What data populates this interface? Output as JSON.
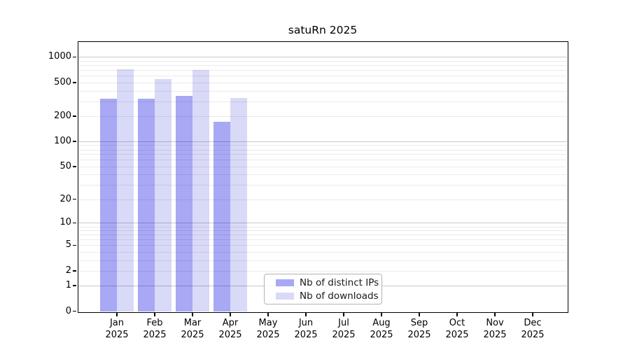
{
  "figure": {
    "title": "satuRn 2025",
    "background_color": "#ffffff"
  },
  "chart_data": {
    "type": "bar",
    "title": "satuRn 2025",
    "categories": [
      {
        "month": "Jan",
        "year": "2025"
      },
      {
        "month": "Feb",
        "year": "2025"
      },
      {
        "month": "Mar",
        "year": "2025"
      },
      {
        "month": "Apr",
        "year": "2025"
      },
      {
        "month": "May",
        "year": "2025"
      },
      {
        "month": "Jun",
        "year": "2025"
      },
      {
        "month": "Jul",
        "year": "2025"
      },
      {
        "month": "Aug",
        "year": "2025"
      },
      {
        "month": "Sep",
        "year": "2025"
      },
      {
        "month": "Oct",
        "year": "2025"
      },
      {
        "month": "Nov",
        "year": "2025"
      },
      {
        "month": "Dec",
        "year": "2025"
      }
    ],
    "series": [
      {
        "name": "Nb of distinct IPs",
        "color": "#a8a8f5",
        "values": [
          320,
          320,
          350,
          170,
          null,
          null,
          null,
          null,
          null,
          null,
          null,
          null
        ]
      },
      {
        "name": "Nb of downloads",
        "color": "#d9d9f8",
        "values": [
          710,
          550,
          700,
          330,
          null,
          null,
          null,
          null,
          null,
          null,
          null,
          null
        ]
      }
    ],
    "y_axis": {
      "scale": "log10(1+x)",
      "tick_values": [
        1000,
        500,
        200,
        100,
        50,
        20,
        10,
        5,
        2,
        1,
        0
      ],
      "tick_labels": [
        "1000",
        "500",
        "200",
        "100",
        "50",
        "20",
        "10",
        "5",
        "2",
        "1",
        "0"
      ],
      "range": [
        0,
        1500
      ]
    },
    "grid": {
      "major_values": [
        1,
        10,
        100,
        1000
      ],
      "minor_values": [
        2,
        3,
        4,
        5,
        6,
        7,
        8,
        9,
        20,
        30,
        40,
        50,
        60,
        70,
        80,
        90,
        200,
        300,
        400,
        500,
        600,
        700,
        800,
        900
      ],
      "major_color": "rgba(0,0,0,0.21)",
      "minor_color": "rgba(0,0,0,0.08)"
    },
    "legend": {
      "position": "bottom-center",
      "items": [
        "Nb of distinct IPs",
        "Nb of downloads"
      ]
    },
    "colors": {
      "axis": "#000000",
      "text": "#1a1a1a"
    }
  }
}
